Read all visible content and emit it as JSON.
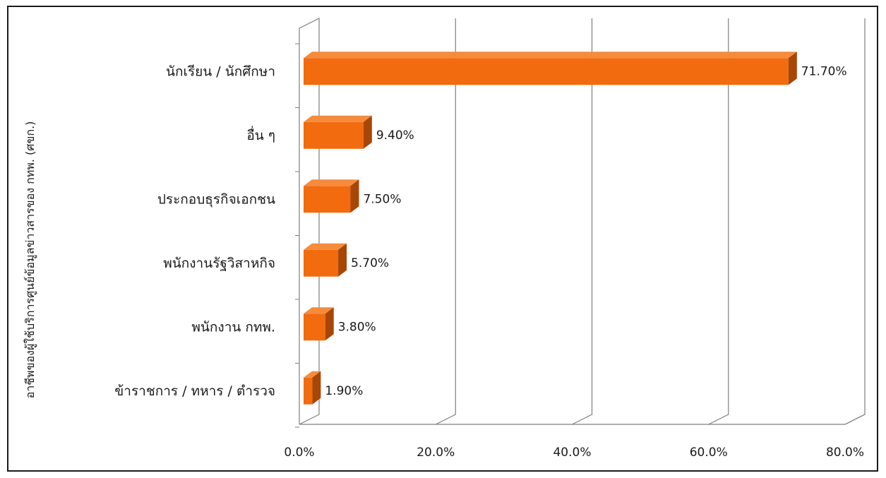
{
  "chart_data": {
    "type": "bar",
    "orientation": "horizontal",
    "style": "3d",
    "title": "",
    "ylabel": "อาชีพของผู้ใช้บริการศูนย์ข้อมูลข่าวสารของ กทพ. (ศขก.)",
    "xlabel": "",
    "categories": [
      "นักเรียน / นักศึกษา",
      "อื่น ๆ",
      "ประกอบธุรกิจเอกชน",
      "พนักงานรัฐวิสาหกิจ",
      "พนักงาน กทพ.",
      "ข้าราชการ / ทหาร / ตำรวจ"
    ],
    "values": [
      71.7,
      9.4,
      7.5,
      5.7,
      3.8,
      1.9
    ],
    "data_labels": [
      "71.70%",
      "9.40%",
      "7.50%",
      "5.70%",
      "3.80%",
      "1.90%"
    ],
    "xlim": [
      0,
      80
    ],
    "x_ticks": [
      "0.0%",
      "20.0%",
      "40.0%",
      "60.0%",
      "80.0%"
    ],
    "grid": true,
    "legend": "none",
    "colors": {
      "bar_front": "#f26b0f",
      "bar_top": "#f58b3c",
      "bar_side": "#a84606",
      "grid": "#7f7f7f",
      "frame": "#1a1a1a"
    }
  }
}
